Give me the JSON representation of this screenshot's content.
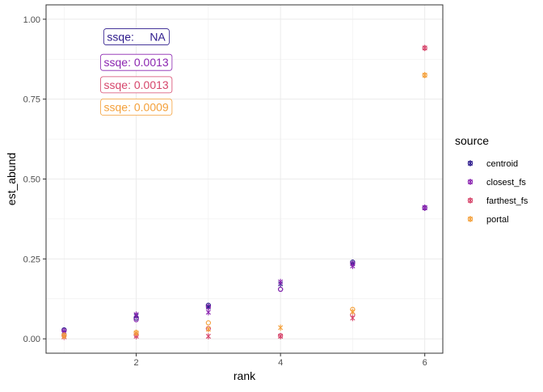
{
  "chart_data": {
    "type": "scatter",
    "title": "",
    "xlabel": "rank",
    "ylabel": "est_abund",
    "xlim": [
      0.75,
      6.25
    ],
    "ylim": [
      -0.045,
      1.045
    ],
    "x_ticks": [
      2,
      4,
      6
    ],
    "x_tick_labels": [
      "2",
      "4",
      "6"
    ],
    "y_ticks": [
      0,
      0.25,
      0.5,
      0.75,
      1
    ],
    "y_tick_labels": [
      "0.00",
      "0.25",
      "0.50",
      "0.75",
      "1.00"
    ],
    "grid": true,
    "legend_title": "source",
    "legend_position": "right",
    "series": [
      {
        "name": "centroid",
        "color": "#2d1a8c",
        "points": [
          {
            "x": 1,
            "y": 0.028,
            "shape": "circle"
          },
          {
            "x": 2,
            "y": 0.065,
            "shape": "circle"
          },
          {
            "x": 3,
            "y": 0.105,
            "shape": "circle"
          },
          {
            "x": 4,
            "y": 0.155,
            "shape": "circle"
          },
          {
            "x": 5,
            "y": 0.24,
            "shape": "circle"
          },
          {
            "x": 6,
            "y": 0.41,
            "shape": "circle"
          },
          {
            "x": 1,
            "y": 0.022,
            "shape": "asterisk"
          },
          {
            "x": 2,
            "y": 0.072,
            "shape": "asterisk"
          },
          {
            "x": 3,
            "y": 0.1,
            "shape": "asterisk"
          },
          {
            "x": 4,
            "y": 0.172,
            "shape": "asterisk"
          },
          {
            "x": 5,
            "y": 0.235,
            "shape": "asterisk"
          },
          {
            "x": 6,
            "y": 0.41,
            "shape": "asterisk"
          }
        ]
      },
      {
        "name": "closest_fs",
        "color": "#8b25b0",
        "points": [
          {
            "x": 1,
            "y": 0.025,
            "shape": "circle"
          },
          {
            "x": 2,
            "y": 0.06,
            "shape": "circle"
          },
          {
            "x": 3,
            "y": 0.1,
            "shape": "circle"
          },
          {
            "x": 4,
            "y": 0.155,
            "shape": "circle"
          },
          {
            "x": 5,
            "y": 0.235,
            "shape": "circle"
          },
          {
            "x": 6,
            "y": 0.41,
            "shape": "circle"
          },
          {
            "x": 1,
            "y": 0.02,
            "shape": "asterisk"
          },
          {
            "x": 2,
            "y": 0.076,
            "shape": "asterisk"
          },
          {
            "x": 3,
            "y": 0.083,
            "shape": "asterisk"
          },
          {
            "x": 4,
            "y": 0.178,
            "shape": "asterisk"
          },
          {
            "x": 5,
            "y": 0.228,
            "shape": "asterisk"
          },
          {
            "x": 6,
            "y": 0.41,
            "shape": "asterisk"
          }
        ]
      },
      {
        "name": "farthest_fs",
        "color": "#d6456b",
        "points": [
          {
            "x": 1,
            "y": 0.01,
            "shape": "circle"
          },
          {
            "x": 2,
            "y": 0.012,
            "shape": "circle"
          },
          {
            "x": 3,
            "y": 0.032,
            "shape": "circle"
          },
          {
            "x": 4,
            "y": 0.01,
            "shape": "circle"
          },
          {
            "x": 5,
            "y": 0.075,
            "shape": "circle"
          },
          {
            "x": 6,
            "y": 0.91,
            "shape": "circle"
          },
          {
            "x": 1,
            "y": 0.006,
            "shape": "asterisk"
          },
          {
            "x": 2,
            "y": 0.008,
            "shape": "asterisk"
          },
          {
            "x": 3,
            "y": 0.008,
            "shape": "asterisk"
          },
          {
            "x": 4,
            "y": 0.008,
            "shape": "asterisk"
          },
          {
            "x": 5,
            "y": 0.065,
            "shape": "asterisk"
          },
          {
            "x": 6,
            "y": 0.91,
            "shape": "asterisk"
          }
        ]
      },
      {
        "name": "portal",
        "color": "#f4a03a",
        "points": [
          {
            "x": 1,
            "y": 0.012,
            "shape": "circle"
          },
          {
            "x": 2,
            "y": 0.02,
            "shape": "circle"
          },
          {
            "x": 3,
            "y": 0.05,
            "shape": "circle"
          },
          {
            "x": 5,
            "y": 0.092,
            "shape": "circle"
          },
          {
            "x": 6,
            "y": 0.825,
            "shape": "circle"
          },
          {
            "x": 1,
            "y": 0.008,
            "shape": "asterisk"
          },
          {
            "x": 2,
            "y": 0.018,
            "shape": "asterisk"
          },
          {
            "x": 3,
            "y": 0.03,
            "shape": "asterisk"
          },
          {
            "x": 4,
            "y": 0.035,
            "shape": "asterisk"
          },
          {
            "x": 5,
            "y": 0.085,
            "shape": "asterisk"
          },
          {
            "x": 6,
            "y": 0.825,
            "shape": "asterisk"
          }
        ]
      }
    ],
    "annotations": [
      {
        "label": "ssqe:     NA",
        "x": 2,
        "y": 0.945,
        "color": "#2d1a8c"
      },
      {
        "label": "ssqe: 0.0013",
        "x": 2,
        "y": 0.865,
        "color": "#8b25b0"
      },
      {
        "label": "ssqe: 0.0013",
        "x": 2,
        "y": 0.795,
        "color": "#d6456b"
      },
      {
        "label": "ssqe: 0.0009",
        "x": 2,
        "y": 0.725,
        "color": "#f4a03a"
      }
    ]
  }
}
